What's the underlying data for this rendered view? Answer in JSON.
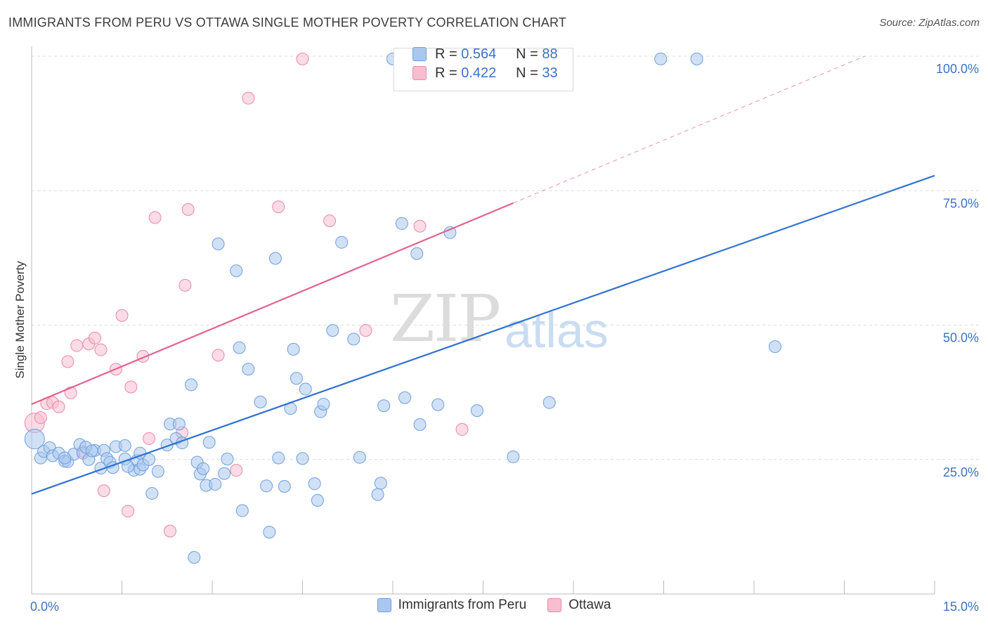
{
  "title": "IMMIGRANTS FROM PERU VS OTTAWA SINGLE MOTHER POVERTY CORRELATION CHART",
  "source": "Source: ZipAtlas.com",
  "watermark": {
    "zip": "ZIP",
    "atlas": "atlas"
  },
  "colors": {
    "blue_fill": "#aac8ef",
    "blue_stroke": "#6e9fdc",
    "blue_line": "#2f72d3",
    "pink_fill": "#f7bed0",
    "pink_stroke": "#e98aa8",
    "pink_line": "#e2638d",
    "axis_text": "#3b72c5",
    "grid": "#dcdcdc"
  },
  "stats": {
    "r_label": "R =",
    "n_label": "N =",
    "blue": {
      "r": "0.564",
      "n": "88"
    },
    "pink": {
      "r": "0.422",
      "n": "33"
    }
  },
  "legend": {
    "series1": "Immigrants from Peru",
    "series2": "Ottawa"
  },
  "chart_data": {
    "type": "scatter",
    "title": "IMMIGRANTS FROM PERU VS OTTAWA SINGLE MOTHER POVERTY CORRELATION CHART",
    "xlabel": "",
    "ylabel": "Single Mother Poverty",
    "xlim": [
      0,
      15
    ],
    "ylim": [
      0,
      100
    ],
    "x_ticks": [
      "0.0%",
      "15.0%"
    ],
    "y_ticks": [
      {
        "value": 25,
        "label": "25.0%"
      },
      {
        "value": 50,
        "label": "50.0%"
      },
      {
        "value": 75,
        "label": "75.0%"
      },
      {
        "value": 100,
        "label": "100.0%"
      }
    ],
    "grid": true,
    "series": [
      {
        "name": "Immigrants from Peru",
        "color": "#aac8ef",
        "trend": {
          "x": [
            0,
            15
          ],
          "y": [
            18.6,
            77.8
          ]
        },
        "points": [
          [
            0.05,
            28.8
          ],
          [
            0.15,
            25.3
          ],
          [
            0.2,
            26.5
          ],
          [
            0.3,
            27.2
          ],
          [
            0.35,
            25.7
          ],
          [
            0.45,
            26.2
          ],
          [
            0.55,
            24.7
          ],
          [
            0.6,
            24.6
          ],
          [
            0.7,
            26.0
          ],
          [
            0.8,
            27.8
          ],
          [
            0.85,
            26.2
          ],
          [
            0.95,
            25.0
          ],
          [
            1.05,
            26.7
          ],
          [
            1.15,
            23.4
          ],
          [
            1.2,
            26.7
          ],
          [
            1.25,
            25.2
          ],
          [
            1.3,
            24.5
          ],
          [
            1.35,
            23.5
          ],
          [
            1.4,
            27.4
          ],
          [
            1.55,
            27.6
          ],
          [
            1.55,
            25.1
          ],
          [
            1.7,
            23.0
          ],
          [
            1.75,
            24.8
          ],
          [
            1.8,
            23.2
          ],
          [
            1.8,
            26.2
          ],
          [
            1.85,
            24.0
          ],
          [
            1.95,
            25.0
          ],
          [
            2.0,
            18.7
          ],
          [
            2.1,
            22.8
          ],
          [
            2.25,
            27.7
          ],
          [
            2.3,
            31.6
          ],
          [
            2.4,
            28.9
          ],
          [
            2.45,
            31.6
          ],
          [
            2.5,
            28.1
          ],
          [
            2.65,
            38.9
          ],
          [
            2.75,
            24.5
          ],
          [
            2.8,
            22.3
          ],
          [
            2.85,
            23.3
          ],
          [
            2.9,
            20.2
          ],
          [
            2.95,
            28.2
          ],
          [
            3.05,
            20.4
          ],
          [
            3.1,
            65.1
          ],
          [
            3.2,
            22.4
          ],
          [
            3.25,
            25.1
          ],
          [
            3.4,
            60.1
          ],
          [
            3.45,
            45.8
          ],
          [
            3.5,
            15.5
          ],
          [
            3.6,
            41.8
          ],
          [
            3.8,
            35.7
          ],
          [
            3.9,
            20.1
          ],
          [
            3.95,
            11.5
          ],
          [
            4.05,
            62.4
          ],
          [
            4.1,
            25.3
          ],
          [
            4.2,
            20.0
          ],
          [
            4.3,
            34.5
          ],
          [
            4.35,
            45.5
          ],
          [
            4.4,
            40.1
          ],
          [
            4.5,
            25.2
          ],
          [
            4.55,
            38.1
          ],
          [
            4.7,
            20.5
          ],
          [
            4.75,
            17.4
          ],
          [
            4.8,
            33.9
          ],
          [
            4.85,
            35.3
          ],
          [
            5.0,
            49.0
          ],
          [
            5.15,
            65.4
          ],
          [
            5.35,
            47.4
          ],
          [
            5.45,
            25.4
          ],
          [
            5.75,
            18.5
          ],
          [
            5.8,
            20.6
          ],
          [
            5.85,
            35.0
          ],
          [
            6.0,
            99.5
          ],
          [
            6.15,
            68.9
          ],
          [
            6.2,
            36.5
          ],
          [
            6.4,
            63.3
          ],
          [
            6.45,
            31.5
          ],
          [
            6.75,
            35.2
          ],
          [
            6.95,
            67.2
          ],
          [
            7.4,
            34.1
          ],
          [
            8.0,
            25.5
          ],
          [
            8.6,
            35.6
          ],
          [
            10.45,
            99.5
          ],
          [
            11.05,
            99.5
          ],
          [
            12.35,
            46.0
          ],
          [
            0.55,
            25.3
          ],
          [
            1.6,
            23.7
          ],
          [
            2.7,
            6.8
          ],
          [
            0.9,
            27.3
          ],
          [
            1.0,
            26.6
          ]
        ]
      },
      {
        "name": "Ottawa",
        "color": "#f7bed0",
        "trend": {
          "x": [
            0,
            8.0
          ],
          "y": [
            35.3,
            72.7
          ]
        },
        "points": [
          [
            0.05,
            31.8
          ],
          [
            0.15,
            32.8
          ],
          [
            0.25,
            35.4
          ],
          [
            0.35,
            35.6
          ],
          [
            0.45,
            34.8
          ],
          [
            0.6,
            43.2
          ],
          [
            0.65,
            37.4
          ],
          [
            0.75,
            46.2
          ],
          [
            0.85,
            26.5
          ],
          [
            0.95,
            46.5
          ],
          [
            1.05,
            47.6
          ],
          [
            1.15,
            45.4
          ],
          [
            1.2,
            19.2
          ],
          [
            1.4,
            41.8
          ],
          [
            1.5,
            51.8
          ],
          [
            1.6,
            15.4
          ],
          [
            1.65,
            38.5
          ],
          [
            1.85,
            44.2
          ],
          [
            1.95,
            28.9
          ],
          [
            2.05,
            70.0
          ],
          [
            2.3,
            11.7
          ],
          [
            2.5,
            30.0
          ],
          [
            2.55,
            57.4
          ],
          [
            2.6,
            71.5
          ],
          [
            3.1,
            44.4
          ],
          [
            3.4,
            23.0
          ],
          [
            3.6,
            92.2
          ],
          [
            4.1,
            72.0
          ],
          [
            4.5,
            99.5
          ],
          [
            4.95,
            69.4
          ],
          [
            5.55,
            49.0
          ],
          [
            6.45,
            68.4
          ],
          [
            7.15,
            30.6
          ]
        ]
      }
    ]
  }
}
